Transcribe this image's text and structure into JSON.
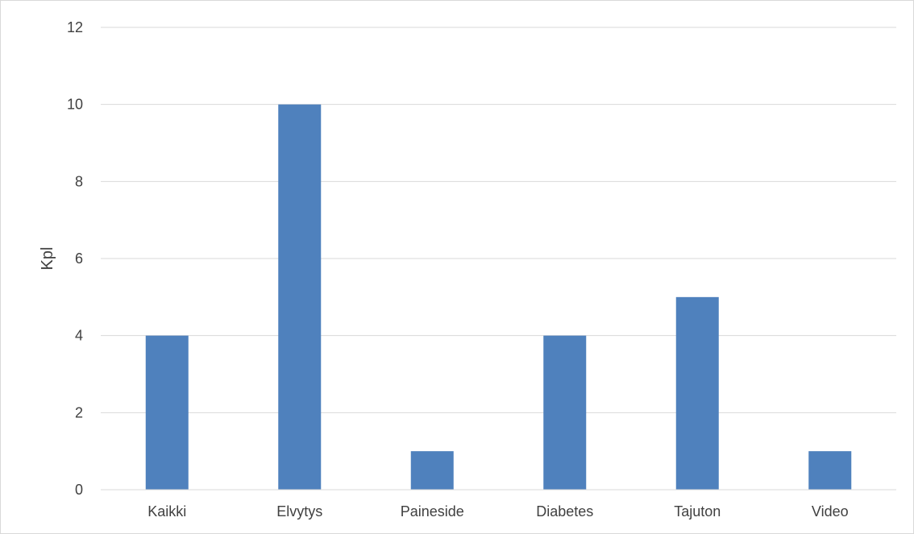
{
  "chart_data": {
    "type": "bar",
    "categories": [
      "Kaikki",
      "Elvytys",
      "Paineside",
      "Diabetes",
      "Tajuton",
      "Video"
    ],
    "values": [
      4,
      10,
      1,
      4,
      5,
      1
    ],
    "ylabel": "Kpl",
    "xlabel": "",
    "ylim": [
      0,
      12
    ],
    "yticks": [
      0,
      2,
      4,
      6,
      8,
      10,
      12
    ],
    "grid": true,
    "legend": "none",
    "bar_color": "#4f81bd",
    "gridline_color": "#d9d9d9"
  }
}
